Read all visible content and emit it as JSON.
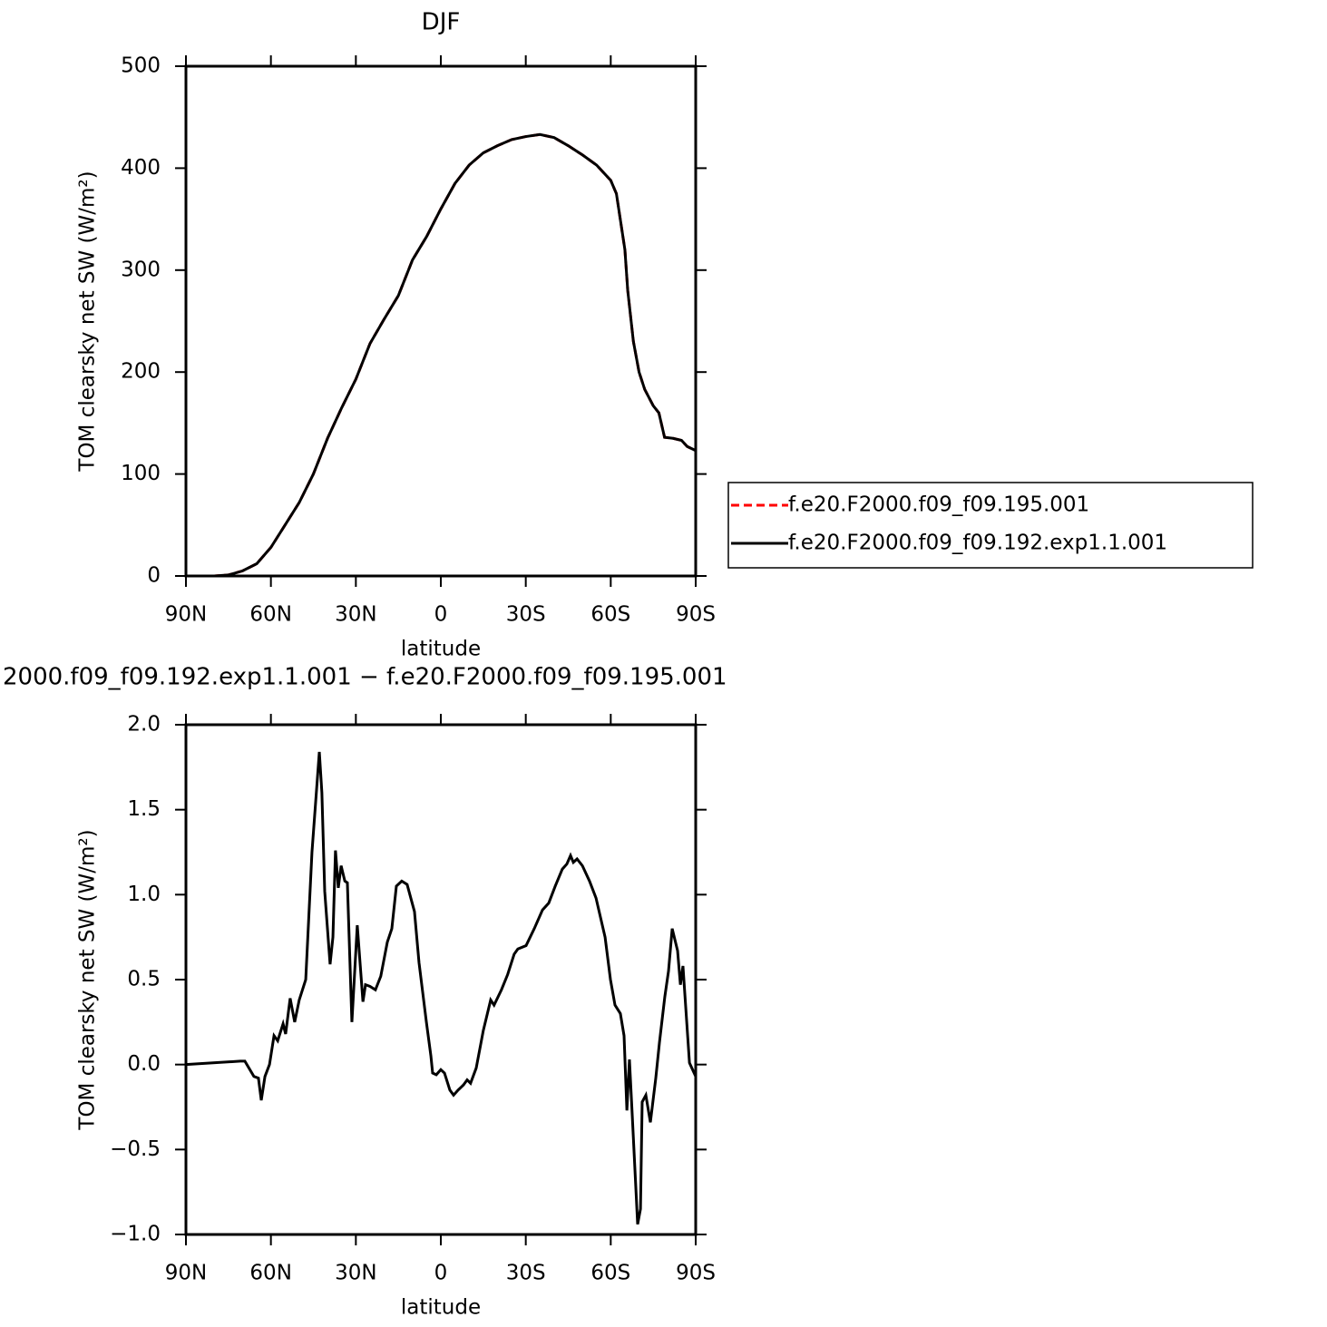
{
  "chart_data": [
    {
      "type": "line",
      "title": "DJF",
      "xlabel": "latitude",
      "ylabel": "TOM clearsky net SW (W/m²)",
      "x": [
        90,
        80,
        75,
        70,
        65,
        60,
        55,
        50,
        45,
        40,
        35,
        30,
        25,
        20,
        15,
        10,
        5,
        0,
        -5,
        -10,
        -15,
        -20,
        -25,
        -30,
        -35,
        -40,
        -45,
        -50,
        -55,
        -60,
        -62,
        -65,
        -66,
        -68,
        -70,
        -72,
        -75,
        -77,
        -79,
        -82,
        -85,
        -87,
        -90
      ],
      "series": [
        {
          "name": "f.e20.F2000.f09_f09.195.001",
          "color": "#ff0000",
          "linestyle": "dashed",
          "values": [
            0,
            0,
            1,
            5,
            12,
            28,
            50,
            72,
            100,
            135,
            165,
            193,
            228,
            252,
            275,
            310,
            333,
            360,
            385,
            403,
            415,
            422,
            428,
            431,
            433,
            430,
            422,
            413,
            403,
            388,
            375,
            320,
            280,
            230,
            200,
            183,
            167,
            160,
            136,
            135,
            133,
            127,
            123
          ]
        },
        {
          "name": "f.e20.F2000.f09_f09.192.exp1.1.001",
          "color": "#000000",
          "linestyle": "solid",
          "values": [
            0,
            0,
            1,
            5,
            12,
            28,
            50,
            72,
            100,
            135,
            165,
            193,
            228,
            252,
            275,
            310,
            333,
            360,
            385,
            403,
            415,
            422,
            428,
            431,
            433,
            430,
            422,
            413,
            403,
            388,
            375,
            320,
            280,
            230,
            200,
            183,
            167,
            160,
            136,
            135,
            133,
            127,
            123
          ]
        }
      ],
      "xlim": [
        90,
        -90
      ],
      "xticks": [
        {
          "value": 90,
          "label": "90N"
        },
        {
          "value": 60,
          "label": "60N"
        },
        {
          "value": 30,
          "label": "30N"
        },
        0,
        {
          "value": -30,
          "label": "30S"
        },
        {
          "value": -60,
          "label": "60S"
        },
        {
          "value": -90,
          "label": "90S"
        }
      ],
      "ylim": [
        0,
        500
      ],
      "yticks": [
        0,
        100,
        200,
        300,
        400,
        500
      ],
      "legend": "right"
    },
    {
      "type": "line",
      "title": "2000.f09_f09.192.exp1.1.001 − f.e20.F2000.f09_f09.195.001",
      "xlabel": "latitude",
      "ylabel": "TOM clearsky net SW (W/m²)",
      "x": [
        90,
        70.8,
        69.2,
        66,
        64.4,
        63.4,
        62.1,
        60.5,
        58.9,
        57.6,
        55.7,
        54.8,
        53.2,
        51.6,
        50,
        47.7,
        45.5,
        42.9,
        42,
        41,
        39.1,
        38.1,
        37.2,
        36.2,
        35.2,
        33.9,
        33,
        31.4,
        29.5,
        27.5,
        26.6,
        25,
        23.1,
        21.2,
        18.9,
        17.3,
        15.7,
        13.8,
        11.9,
        9.3,
        7.7,
        5.1,
        3.5,
        2.9,
        1.6,
        0,
        -1.3,
        -3.2,
        -4.5,
        -6.1,
        -8,
        -9.3,
        -10.5,
        -12.5,
        -15,
        -17.6,
        -18.8,
        -21.4,
        -23.6,
        -25.9,
        -27.2,
        -30.1,
        -33,
        -35.9,
        -38.1,
        -40.4,
        -42.9,
        -44.5,
        -45.8,
        -46.8,
        -48.1,
        -50,
        -52.5,
        -54.8,
        -58,
        -59.9,
        -61.5,
        -63.4,
        -64.7,
        -65.7,
        -66.6,
        -67.6,
        -69.5,
        -70.5,
        -71.1,
        -72.4,
        -74,
        -75.9,
        -77.2,
        -79.1,
        -80.4,
        -81.7,
        -83.6,
        -84.6,
        -85.5,
        -87.8,
        -90
      ],
      "series": [
        {
          "color": "#000000",
          "linestyle": "solid",
          "values": [
            0,
            0.02,
            0.02,
            -0.07,
            -0.08,
            -0.21,
            -0.07,
            0,
            0.17,
            0.14,
            0.24,
            0.18,
            0.39,
            0.25,
            0.38,
            0.5,
            1.25,
            1.84,
            1.6,
            1.02,
            0.59,
            0.75,
            1.26,
            1.04,
            1.17,
            1.08,
            1.07,
            0.25,
            0.82,
            0.37,
            0.47,
            0.46,
            0.44,
            0.52,
            0.72,
            0.8,
            1.05,
            1.08,
            1.06,
            0.9,
            0.6,
            0.25,
            0.05,
            -0.05,
            -0.06,
            -0.03,
            -0.05,
            -0.15,
            -0.18,
            -0.15,
            -0.12,
            -0.09,
            -0.11,
            -0.02,
            0.2,
            0.38,
            0.35,
            0.44,
            0.53,
            0.65,
            0.68,
            0.7,
            0.8,
            0.91,
            0.95,
            1.05,
            1.15,
            1.18,
            1.23,
            1.19,
            1.21,
            1.17,
            1.08,
            0.98,
            0.75,
            0.5,
            0.35,
            0.3,
            0.17,
            -0.27,
            0.03,
            -0.3,
            -0.94,
            -0.85,
            -0.22,
            -0.18,
            -0.34,
            -0.08,
            0.13,
            0.4,
            0.55,
            0.8,
            0.67,
            0.47,
            0.58,
            0.01,
            -0.07
          ]
        }
      ],
      "xlim": [
        90,
        -90
      ],
      "xticks": [
        {
          "value": 90,
          "label": "90N"
        },
        {
          "value": 60,
          "label": "60N"
        },
        {
          "value": 30,
          "label": "30N"
        },
        0,
        {
          "value": -30,
          "label": "30S"
        },
        {
          "value": -60,
          "label": "60S"
        },
        {
          "value": -90,
          "label": "90S"
        }
      ],
      "ylim": [
        -1,
        2
      ],
      "yticks": [
        {
          "value": -1,
          "label": "−1.0"
        },
        {
          "value": -0.5,
          "label": "−0.5"
        },
        {
          "value": 0,
          "label": "0.0"
        },
        {
          "value": 0.5,
          "label": "0.5"
        },
        {
          "value": 1,
          "label": "1.0"
        },
        {
          "value": 1.5,
          "label": "1.5"
        },
        {
          "value": 2,
          "label": "2.0"
        }
      ]
    }
  ]
}
